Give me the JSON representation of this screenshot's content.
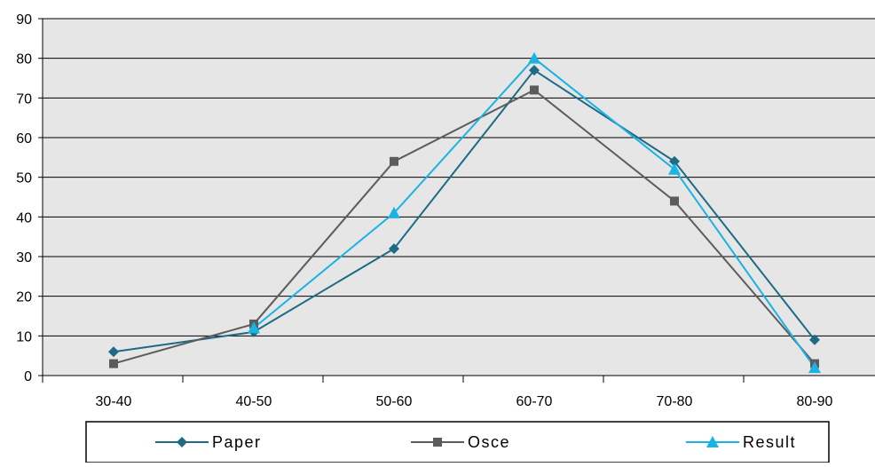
{
  "chart_data": {
    "type": "line",
    "title": "",
    "xlabel": "",
    "ylabel": "",
    "categories": [
      "30-40",
      "40-50",
      "50-60",
      "60-70",
      "70-80",
      "80-90"
    ],
    "ylim": [
      0,
      90
    ],
    "yticks": [
      0,
      10,
      20,
      30,
      40,
      50,
      60,
      70,
      80,
      90
    ],
    "grid": true,
    "legend_position": "bottom",
    "plot_background": "#e6e6e6",
    "series": [
      {
        "name": "Paper",
        "values": [
          6,
          11,
          32,
          77,
          54,
          9
        ],
        "color": "#1e6b85",
        "marker": "diamond"
      },
      {
        "name": "Osce",
        "values": [
          3,
          13,
          54,
          72,
          44,
          3
        ],
        "color": "#5c5c5c",
        "marker": "square"
      },
      {
        "name": "Result",
        "values": [
          null,
          12,
          41,
          80,
          52,
          2
        ],
        "color": "#1ab3e3",
        "marker": "triangle"
      }
    ]
  }
}
